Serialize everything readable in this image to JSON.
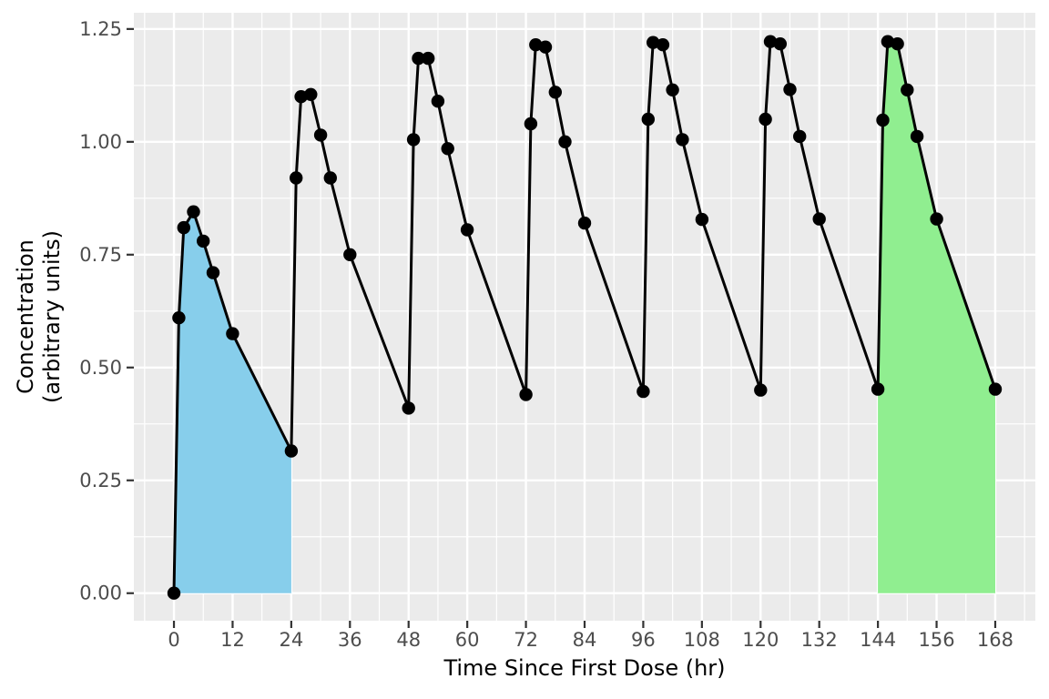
{
  "chart_data": {
    "type": "line",
    "title": "",
    "xlabel": "Time Since First Dose (hr)",
    "ylabel": "Concentration\n(arbitrary units)",
    "x": [
      0,
      1,
      2,
      4,
      6,
      8,
      12,
      24,
      25,
      26,
      28,
      30,
      32,
      36,
      48,
      49,
      50,
      52,
      54,
      56,
      60,
      72,
      73,
      74,
      76,
      78,
      80,
      84,
      96,
      97,
      98,
      100,
      102,
      104,
      108,
      120,
      121,
      122,
      124,
      126,
      128,
      132,
      144,
      145,
      146,
      148,
      150,
      152,
      156,
      168
    ],
    "y": [
      0,
      0.61,
      0.81,
      0.845,
      0.78,
      0.71,
      0.575,
      0.315,
      0.92,
      1.1,
      1.105,
      1.015,
      0.92,
      0.75,
      0.41,
      1.005,
      1.185,
      1.185,
      1.09,
      0.985,
      0.805,
      0.44,
      1.04,
      1.215,
      1.21,
      1.11,
      1.0,
      0.82,
      0.447,
      1.05,
      1.22,
      1.215,
      1.115,
      1.005,
      0.828,
      0.45,
      1.05,
      1.222,
      1.217,
      1.116,
      1.012,
      0.829,
      0.452,
      1.048,
      1.222,
      1.217,
      1.115,
      1.012,
      0.829,
      0.452
    ],
    "xticks": [
      0,
      12,
      24,
      36,
      48,
      60,
      72,
      84,
      96,
      108,
      120,
      132,
      144,
      156,
      168
    ],
    "xtick_labels": [
      "0",
      "12",
      "24",
      "36",
      "48",
      "60",
      "72",
      "84",
      "96",
      "108",
      "120",
      "132",
      "144",
      "156",
      "168"
    ],
    "yticks": [
      0,
      0.25,
      0.5,
      0.75,
      1.0,
      1.25
    ],
    "ytick_labels": [
      "0.00",
      "0.25",
      "0.50",
      "0.75",
      "1.00",
      "1.25"
    ],
    "xlim": [
      -8.2,
      176.2
    ],
    "ylim": [
      -0.061,
      1.286
    ],
    "x_minor_step": 6,
    "y_minor_step": 0.125,
    "grid": "major and minor white gridlines on gray panel",
    "legend": "none",
    "shaded_regions": [
      {
        "name": "first-dose-interval-auc",
        "x_from": 0,
        "x_to": 24,
        "fill": "#87CEEB"
      },
      {
        "name": "last-dose-interval-auc",
        "x_from": 144,
        "x_to": 168,
        "fill": "#90EE90"
      }
    ],
    "colors": {
      "panel_bg": "#EBEBEB",
      "grid": "#FFFFFF",
      "line": "#000000",
      "point": "#000000",
      "tick": "#333333",
      "tick_label": "#4D4D4D",
      "axis_title": "#000000",
      "auc_first": "#87CEEB",
      "auc_last": "#90EE90"
    }
  }
}
